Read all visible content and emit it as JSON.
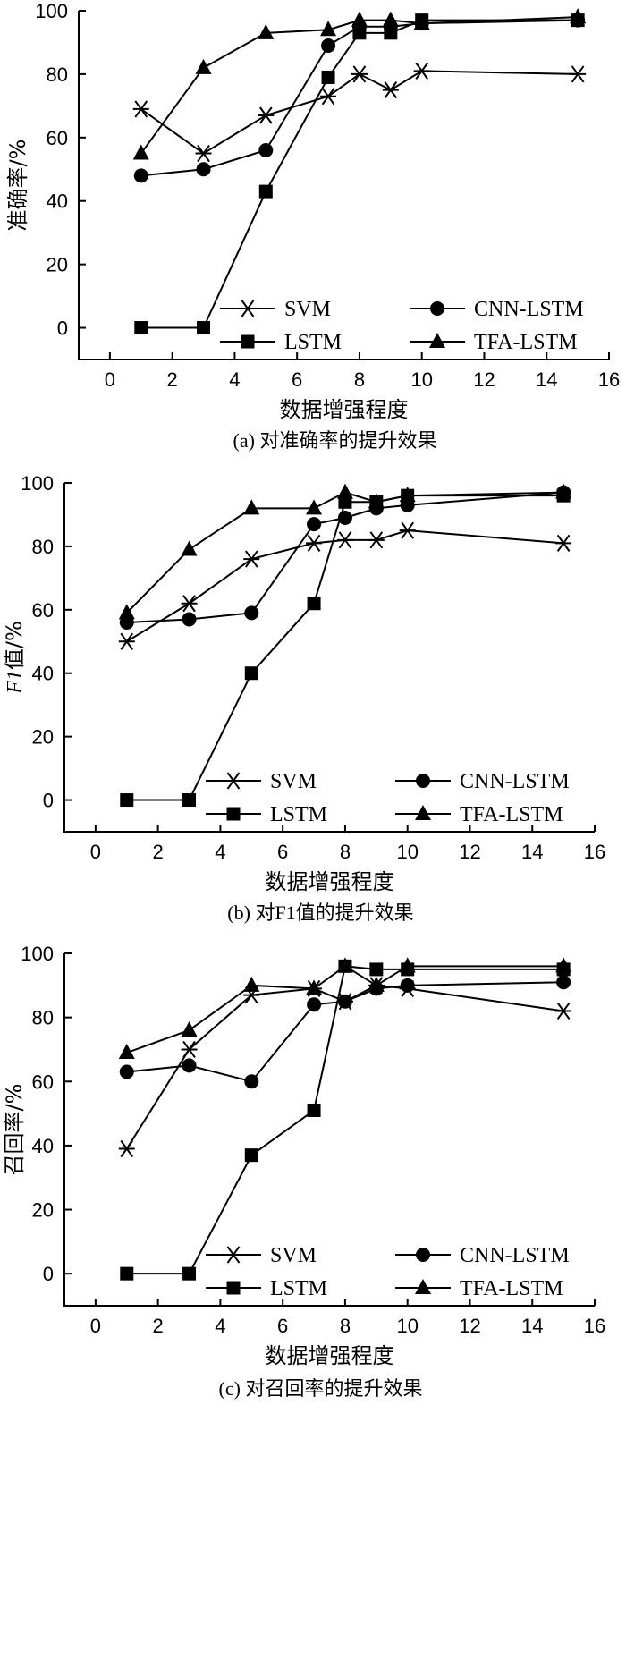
{
  "chart_data": [
    {
      "type": "line",
      "xlabel": "数据增强程度",
      "ylabel": "准确率/%",
      "ylabel_italic_prefix": "",
      "caption": "(a)  对准确率的提升效果",
      "xlim": [
        -1,
        16
      ],
      "ylim": [
        -10,
        100
      ],
      "xticks": [
        0,
        2,
        4,
        6,
        8,
        10,
        12,
        14,
        16
      ],
      "yticks": [
        0,
        20,
        40,
        60,
        80,
        100
      ],
      "x": [
        1,
        3,
        5,
        7,
        8,
        9,
        10,
        15
      ],
      "series": [
        {
          "name": "SVM",
          "marker": "asterisk",
          "values": [
            69,
            55,
            67,
            73,
            80,
            75,
            81,
            80
          ]
        },
        {
          "name": "CNN-LSTM",
          "marker": "circle",
          "values": [
            48,
            50,
            56,
            89,
            95,
            95,
            96,
            97
          ]
        },
        {
          "name": "LSTM",
          "marker": "square",
          "values": [
            0,
            0,
            43,
            79,
            93,
            93,
            97,
            97
          ]
        },
        {
          "name": "TFA-LSTM",
          "marker": "triangle",
          "values": [
            55,
            82,
            93,
            94,
            97,
            97,
            96,
            98
          ]
        }
      ],
      "legend": "bottom-right"
    },
    {
      "type": "line",
      "xlabel": "数据增强程度",
      "ylabel": "值/%",
      "ylabel_italic_prefix": "F1",
      "caption": "(b)  对F1值的提升效果",
      "xlim": [
        -1,
        16
      ],
      "ylim": [
        -10,
        100
      ],
      "xticks": [
        0,
        2,
        4,
        6,
        8,
        10,
        12,
        14,
        16
      ],
      "yticks": [
        0,
        20,
        40,
        60,
        80,
        100
      ],
      "x": [
        1,
        3,
        5,
        7,
        8,
        9,
        10,
        15
      ],
      "series": [
        {
          "name": "SVM",
          "marker": "asterisk",
          "values": [
            50,
            62,
            76,
            81,
            82,
            82,
            85,
            81
          ]
        },
        {
          "name": "CNN-LSTM",
          "marker": "circle",
          "values": [
            56,
            57,
            59,
            87,
            89,
            92,
            93,
            97
          ]
        },
        {
          "name": "LSTM",
          "marker": "square",
          "values": [
            0,
            0,
            40,
            62,
            94,
            94,
            96,
            96
          ]
        },
        {
          "name": "TFA-LSTM",
          "marker": "triangle",
          "values": [
            59,
            79,
            92,
            92,
            97,
            94,
            96,
            97
          ]
        }
      ],
      "legend": "bottom-right"
    },
    {
      "type": "line",
      "xlabel": "数据增强程度",
      "ylabel": "召回率/%",
      "ylabel_italic_prefix": "",
      "caption": "(c)  对召回率的提升效果",
      "xlim": [
        -1,
        16
      ],
      "ylim": [
        -10,
        100
      ],
      "xticks": [
        0,
        2,
        4,
        6,
        8,
        10,
        12,
        14,
        16
      ],
      "yticks": [
        0,
        20,
        40,
        60,
        80,
        100
      ],
      "x": [
        1,
        3,
        5,
        7,
        8,
        9,
        10,
        15
      ],
      "series": [
        {
          "name": "SVM",
          "marker": "asterisk",
          "values": [
            39,
            70,
            87,
            89,
            85,
            90,
            89,
            82
          ]
        },
        {
          "name": "CNN-LSTM",
          "marker": "circle",
          "values": [
            63,
            65,
            60,
            84,
            85,
            89,
            90,
            91
          ]
        },
        {
          "name": "LSTM",
          "marker": "square",
          "values": [
            0,
            0,
            37,
            51,
            96,
            95,
            95,
            95
          ]
        },
        {
          "name": "TFA-LSTM",
          "marker": "triangle",
          "values": [
            69,
            76,
            90,
            89,
            96,
            90,
            96,
            96
          ]
        }
      ],
      "legend": "bottom-right"
    }
  ]
}
